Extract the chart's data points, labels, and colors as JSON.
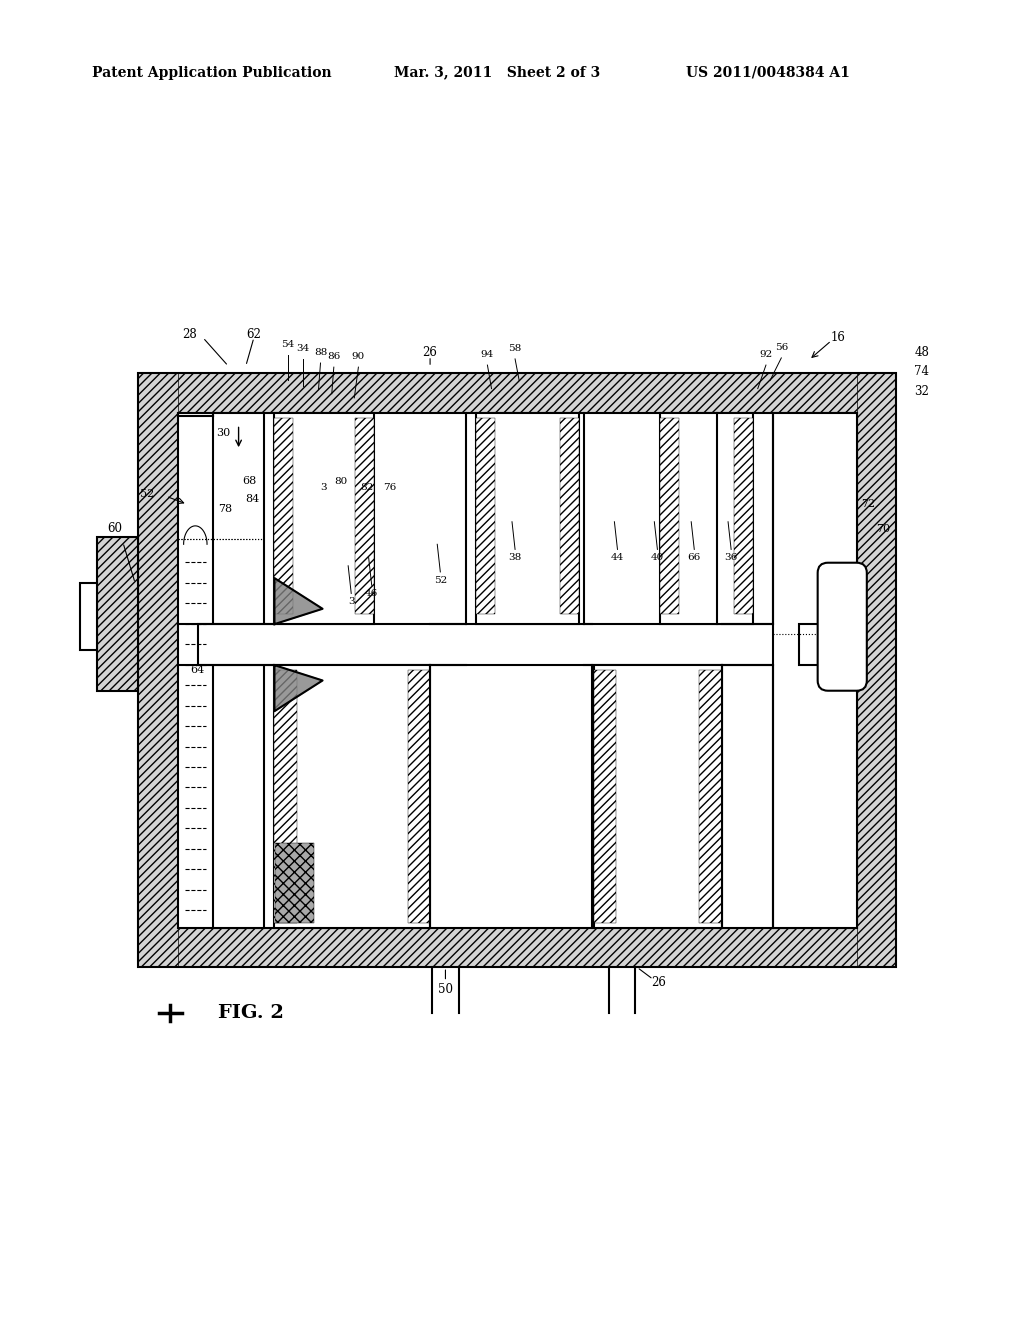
{
  "title": "Patent Application Publication",
  "date": "Mar. 3, 2011",
  "sheet": "Sheet 2 of 3",
  "patent_num": "US 2011/0048384 A1",
  "fig_label": "FIG. 2",
  "bg_color": "#ffffff",
  "line_color": "#000000"
}
